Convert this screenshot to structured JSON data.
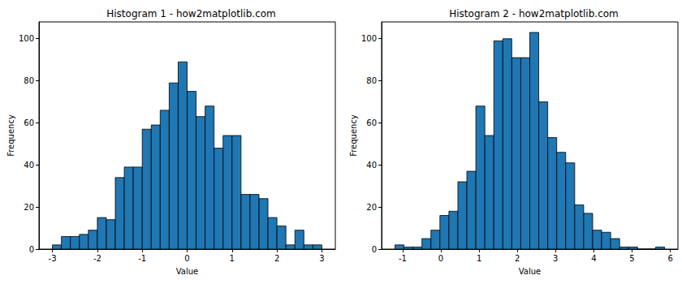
{
  "chart_data": [
    {
      "type": "histogram",
      "title": "Histogram 1 - how2matplotlib.com",
      "x_label": "Value",
      "y_label": "Frequency",
      "bins": [
        -3.0,
        -2.8,
        -2.6,
        -2.4,
        -2.2,
        -2.0,
        -1.8,
        -1.6,
        -1.4,
        -1.2,
        -1.0,
        -0.8,
        -0.6,
        -0.4,
        -0.2,
        0.0,
        0.2,
        0.4,
        0.6,
        0.8,
        1.0,
        1.2,
        1.4,
        1.6,
        1.8,
        2.0,
        2.2,
        2.4,
        2.6,
        2.8,
        3.0
      ],
      "values": [
        2,
        6,
        6,
        7,
        9,
        15,
        14,
        34,
        39,
        39,
        57,
        59,
        66,
        79,
        89,
        75,
        63,
        68,
        48,
        54,
        54,
        26,
        26,
        24,
        15,
        11,
        2,
        9,
        2,
        2
      ],
      "color": "#1f77b4",
      "xlim": [
        -3.3,
        3.3
      ],
      "xticks": [
        -3,
        -2,
        -1,
        0,
        1,
        2,
        3
      ],
      "ylim": [
        0,
        108
      ],
      "yticks": [
        0,
        20,
        40,
        60,
        80,
        100
      ],
      "grid": false
    },
    {
      "type": "histogram",
      "title": "Histogram 2 - how2matplotlib.com",
      "x_label": "Value",
      "y_label": "Frequency",
      "bins": [
        -1.2,
        -0.965,
        -0.73,
        -0.495,
        -0.26,
        -0.025,
        0.21,
        0.445,
        0.68,
        0.915,
        1.15,
        1.385,
        1.62,
        1.855,
        2.09,
        2.325,
        2.56,
        2.795,
        3.03,
        3.265,
        3.5,
        3.735,
        3.97,
        4.205,
        4.44,
        4.675,
        4.91,
        5.145,
        5.38,
        5.615,
        5.85
      ],
      "values": [
        2,
        1,
        1,
        5,
        9,
        16,
        18,
        32,
        37,
        68,
        54,
        99,
        100,
        91,
        91,
        103,
        70,
        53,
        46,
        41,
        21,
        17,
        9,
        8,
        5,
        1,
        1,
        0,
        0,
        1
      ],
      "color": "#1f77b4",
      "xlim": [
        -1.55,
        6.2
      ],
      "xticks": [
        -1,
        0,
        1,
        2,
        3,
        4,
        5,
        6
      ],
      "ylim": [
        0,
        108
      ],
      "yticks": [
        0,
        20,
        40,
        60,
        80,
        100
      ],
      "grid": false
    }
  ]
}
